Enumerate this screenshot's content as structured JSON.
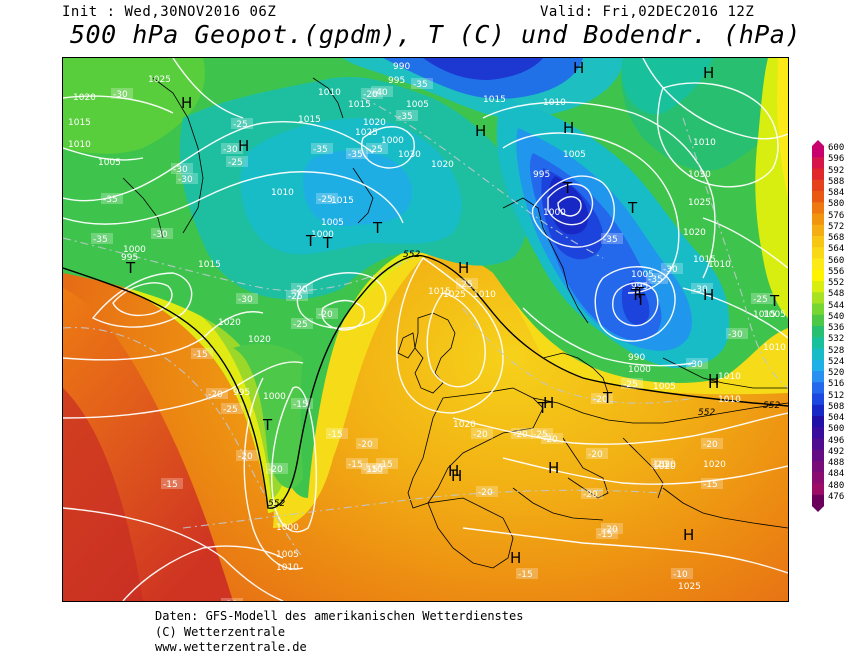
{
  "header": {
    "init": "Init : Wed,30NOV2016 06Z",
    "valid": "Valid: Fri,02DEC2016 12Z",
    "title": "500 hPa Geopot.(gpdm), T (C) und Bodendr. (hPa)"
  },
  "colorbar": {
    "levels": [
      "600",
      "596",
      "592",
      "588",
      "584",
      "580",
      "576",
      "572",
      "568",
      "564",
      "560",
      "556",
      "552",
      "548",
      "544",
      "540",
      "536",
      "532",
      "528",
      "524",
      "520",
      "516",
      "512",
      "508",
      "504",
      "500",
      "496",
      "492",
      "488",
      "484",
      "480",
      "476"
    ],
    "colors": [
      "#c8006e",
      "#d6154b",
      "#e0282c",
      "#e5411c",
      "#e85a14",
      "#ee7812",
      "#f19410",
      "#f4ad12",
      "#f7c514",
      "#f9d916",
      "#fbea18",
      "#fff400",
      "#d8ee10",
      "#a8e222",
      "#78d632",
      "#4cc846",
      "#28c070",
      "#18c09c",
      "#18bcc6",
      "#20b0e8",
      "#2890f0",
      "#2468ec",
      "#1c48e0",
      "#1828c4",
      "#2010a8",
      "#380c9c",
      "#500c90",
      "#640c84",
      "#780c78",
      "#8a0c6e",
      "#9c0c66",
      "#6a005c"
    ]
  },
  "map": {
    "height_labels": [
      {
        "text": "552"
      },
      {
        "text": "552"
      },
      {
        "text": "552"
      },
      {
        "text": "552"
      }
    ],
    "pressure_labels": [
      {
        "text": "1025"
      },
      {
        "text": "1020"
      },
      {
        "text": "1015"
      },
      {
        "text": "1010"
      },
      {
        "text": "1005"
      },
      {
        "text": "1000"
      },
      {
        "text": "995"
      },
      {
        "text": "1015"
      },
      {
        "text": "990"
      },
      {
        "text": "995"
      },
      {
        "text": "1010"
      },
      {
        "text": "1015"
      },
      {
        "text": "1020"
      },
      {
        "text": "1025"
      },
      {
        "text": "1000"
      },
      {
        "text": "1005"
      },
      {
        "text": "1030"
      },
      {
        "text": "1010"
      },
      {
        "text": "1015"
      },
      {
        "text": "1005"
      },
      {
        "text": "1000"
      },
      {
        "text": "1015"
      },
      {
        "text": "1020"
      },
      {
        "text": "1015"
      },
      {
        "text": "1010"
      },
      {
        "text": "1005"
      },
      {
        "text": "1000"
      },
      {
        "text": "995"
      },
      {
        "text": "1010"
      },
      {
        "text": "1030"
      },
      {
        "text": "1025"
      },
      {
        "text": "1020"
      },
      {
        "text": "1015"
      },
      {
        "text": "1010"
      },
      {
        "text": "1005"
      },
      {
        "text": "995"
      },
      {
        "text": "990"
      },
      {
        "text": "1000"
      },
      {
        "text": "1005"
      },
      {
        "text": "1010"
      },
      {
        "text": "1015"
      },
      {
        "text": "1010"
      },
      {
        "text": "1015"
      },
      {
        "text": "1020"
      },
      {
        "text": "1025"
      },
      {
        "text": "1010"
      },
      {
        "text": "1000"
      },
      {
        "text": "995"
      },
      {
        "text": "1020"
      },
      {
        "text": "1020"
      },
      {
        "text": "1020"
      },
      {
        "text": "1000"
      },
      {
        "text": "1005"
      },
      {
        "text": "1010"
      },
      {
        "text": "1020"
      },
      {
        "text": "1020"
      },
      {
        "text": "1025"
      },
      {
        "text": "1010"
      },
      {
        "text": "1005"
      }
    ],
    "temp_labels": [
      {
        "text": "-30"
      },
      {
        "text": "-25"
      },
      {
        "text": "-30"
      },
      {
        "text": "-35"
      },
      {
        "text": "-30"
      },
      {
        "text": "-35"
      },
      {
        "text": "-30"
      },
      {
        "text": "-35"
      },
      {
        "text": "-25"
      },
      {
        "text": "-35"
      },
      {
        "text": "-40"
      },
      {
        "text": "-35"
      },
      {
        "text": "-35"
      },
      {
        "text": "-25"
      },
      {
        "text": "-30"
      },
      {
        "text": "-25"
      },
      {
        "text": "-20"
      },
      {
        "text": "-25"
      },
      {
        "text": "-30"
      },
      {
        "text": "-25"
      },
      {
        "text": "-20"
      },
      {
        "text": "-15"
      },
      {
        "text": "-20"
      },
      {
        "text": "-25"
      },
      {
        "text": "-20"
      },
      {
        "text": "-25"
      },
      {
        "text": "-35"
      },
      {
        "text": "-30"
      },
      {
        "text": "-35"
      },
      {
        "text": "-30"
      },
      {
        "text": "-30"
      },
      {
        "text": "-25"
      },
      {
        "text": "-30"
      },
      {
        "text": "-25"
      },
      {
        "text": "-20"
      },
      {
        "text": "-15"
      },
      {
        "text": "-20"
      },
      {
        "text": "-15"
      },
      {
        "text": "-20"
      },
      {
        "text": "-15"
      },
      {
        "text": "-10"
      },
      {
        "text": "-15"
      },
      {
        "text": "-15"
      },
      {
        "text": "-15"
      },
      {
        "text": "-20"
      },
      {
        "text": "-20"
      },
      {
        "text": "-20"
      },
      {
        "text": "-25"
      },
      {
        "text": "-20"
      },
      {
        "text": "-20"
      },
      {
        "text": "-20"
      },
      {
        "text": "-20"
      },
      {
        "text": "-20"
      },
      {
        "text": "-15"
      },
      {
        "text": "-10"
      },
      {
        "text": "-20"
      },
      {
        "text": "-15"
      },
      {
        "text": "-15"
      },
      {
        "text": "-10"
      },
      {
        "text": "-20"
      }
    ],
    "pressure_centers": [
      {
        "type": "H"
      },
      {
        "type": "H"
      },
      {
        "type": "T"
      },
      {
        "type": "H"
      },
      {
        "type": "H"
      },
      {
        "type": "T"
      },
      {
        "type": "H"
      },
      {
        "type": "T"
      },
      {
        "type": "T"
      },
      {
        "type": "T"
      },
      {
        "type": "T"
      },
      {
        "type": "H"
      },
      {
        "type": "T"
      },
      {
        "type": "H"
      },
      {
        "type": "T"
      },
      {
        "type": "H"
      },
      {
        "type": "T"
      },
      {
        "type": "H"
      },
      {
        "type": "T"
      },
      {
        "type": "H"
      },
      {
        "type": "T"
      },
      {
        "type": "H"
      },
      {
        "type": "T"
      },
      {
        "type": "H"
      },
      {
        "type": "H"
      },
      {
        "type": "H"
      },
      {
        "type": "T"
      },
      {
        "type": "H"
      },
      {
        "type": "H"
      }
    ]
  },
  "footer": {
    "line1": "Daten: GFS-Modell des amerikanischen Wetterdienstes",
    "line2": "(C) Wetterzentrale",
    "line3": "www.wetterzentrale.de"
  }
}
